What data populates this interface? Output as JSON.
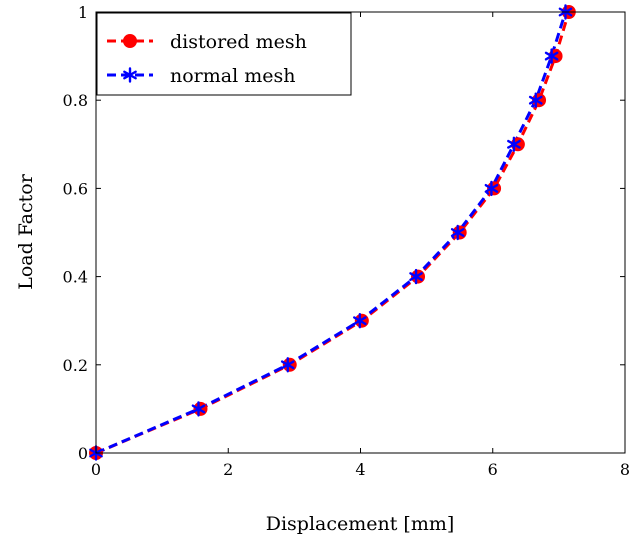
{
  "chart_data": {
    "type": "line",
    "title": "",
    "xlabel": "Displacement [mm]",
    "ylabel": "Load Factor",
    "xlim": [
      0,
      8
    ],
    "ylim": [
      0,
      1
    ],
    "xticks": [
      0,
      2,
      4,
      6,
      8
    ],
    "yticks": [
      0,
      0.2,
      0.4,
      0.6,
      0.8,
      1
    ],
    "xtick_labels": [
      "0",
      "2",
      "4",
      "6",
      "8"
    ],
    "ytick_labels": [
      "0",
      "0.2",
      "0.4",
      "0.6",
      "0.8",
      "1"
    ],
    "grid": false,
    "legend_position": "top-left",
    "series": [
      {
        "name": "distored mesh",
        "color": "#ff0000",
        "marker": "circle",
        "line_style": "dashed",
        "x": [
          0,
          1.58,
          2.93,
          4.02,
          4.87,
          5.5,
          6.02,
          6.38,
          6.7,
          6.95,
          7.15
        ],
        "y": [
          0,
          0.1,
          0.2,
          0.3,
          0.4,
          0.5,
          0.6,
          0.7,
          0.8,
          0.9,
          1.0
        ]
      },
      {
        "name": "normal mesh",
        "color": "#0000ff",
        "marker": "asterisk",
        "line_style": "dashed",
        "x": [
          0,
          1.55,
          2.9,
          3.99,
          4.84,
          5.47,
          5.98,
          6.32,
          6.65,
          6.89,
          7.1
        ],
        "y": [
          0,
          0.1,
          0.2,
          0.3,
          0.4,
          0.5,
          0.6,
          0.7,
          0.8,
          0.9,
          1.0
        ]
      }
    ]
  }
}
